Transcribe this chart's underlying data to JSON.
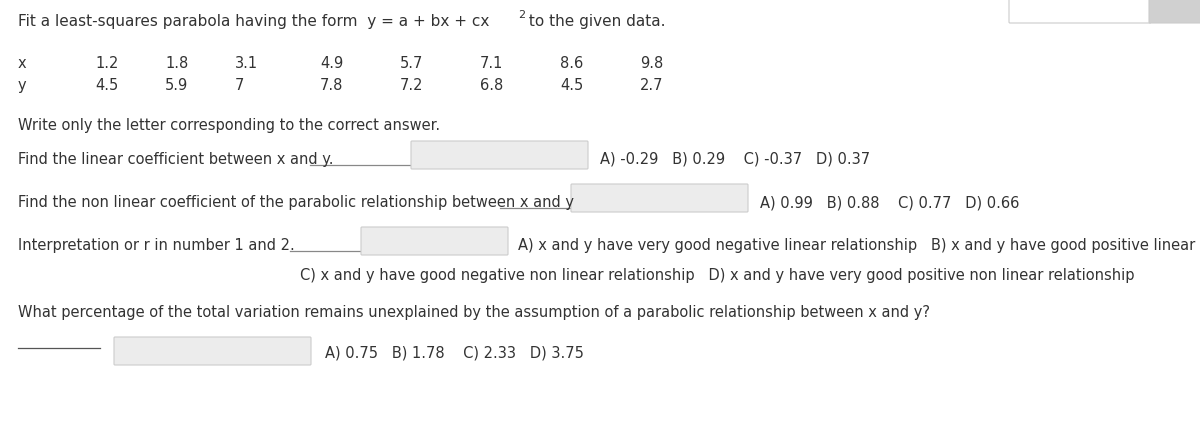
{
  "x_values": [
    "1.2",
    "1.8",
    "3.1",
    "4.9",
    "5.7",
    "7.1",
    "8.6",
    "9.8"
  ],
  "y_values": [
    "4.5",
    "5.9",
    "7",
    "7.8",
    "7.2",
    "6.8",
    "4.5",
    "2.7"
  ],
  "instruction": "Write only the letter corresponding to the correct answer.",
  "q1_text": "Find the linear coefficient between x and y.",
  "q1_choices": "A) -0.29   B) 0.29    C) -0.37   D) 0.37",
  "q2_text": "Find the non linear coefficient of the parabolic relationship between x and y",
  "q2_choices": "A) 0.99   B) 0.88    C) 0.77   D) 0.66",
  "q3_text": "Interpretation or r in number 1 and 2.",
  "q3_choice_ab": "A) x and y have very good negative linear relationship   B) x and y have good positive linear relationship",
  "q3_choice_cd": "C) x and y have good negative non linear relationship   D) x and y have very good positive non linear relationship",
  "q4_text": "What percentage of the total variation remains unexplained by the assumption of a parabolic relationship between x and y?",
  "q4_choices": "A) 0.75   B) 1.78    C) 2.33   D) 3.75",
  "bg_color": "#ffffff",
  "text_color": "#333333",
  "box_fill": "#ececec",
  "box_edge": "#cccccc",
  "title_color": "#1a1a1a",
  "fs": 10.5,
  "title_fs": 11.0
}
